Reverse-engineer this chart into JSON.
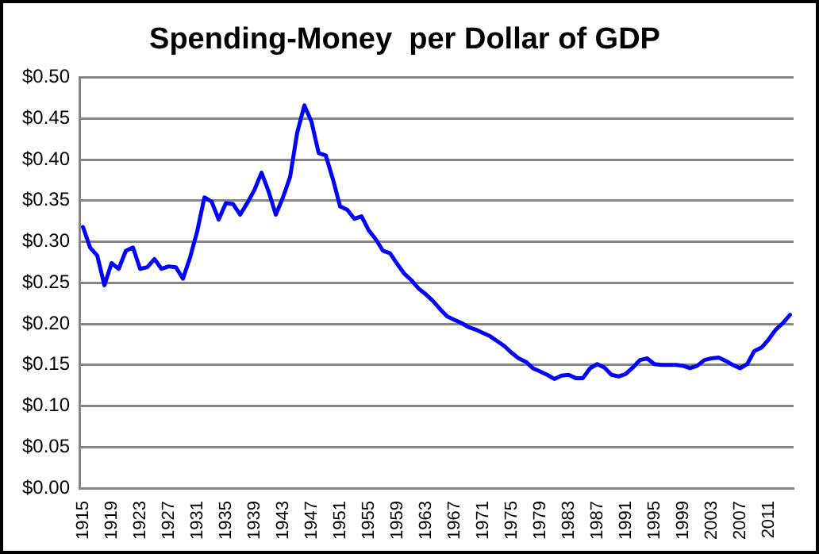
{
  "chart_data": {
    "type": "line",
    "title": "Spending-Money  per Dollar of GDP",
    "categories": [
      "1915",
      null,
      null,
      null,
      "1919",
      null,
      null,
      null,
      "1923",
      null,
      null,
      null,
      "1927",
      null,
      null,
      null,
      "1931",
      null,
      null,
      null,
      "1935",
      null,
      null,
      null,
      "1939",
      null,
      null,
      null,
      "1943",
      null,
      null,
      null,
      "1947",
      null,
      null,
      null,
      "1951",
      null,
      null,
      null,
      "1955",
      null,
      null,
      null,
      "1959",
      null,
      null,
      null,
      "1963",
      null,
      null,
      null,
      "1967",
      null,
      null,
      null,
      "1971",
      null,
      null,
      null,
      "1975",
      null,
      null,
      null,
      "1979",
      null,
      null,
      null,
      "1983",
      null,
      null,
      null,
      "1987",
      null,
      null,
      null,
      "1991",
      null,
      null,
      null,
      "1995",
      null,
      null,
      null,
      "1999",
      null,
      null,
      null,
      "2003",
      null,
      null,
      null,
      "2007",
      null,
      null,
      null,
      "2011",
      null,
      null,
      null
    ],
    "series": [
      {
        "color": "#0000ff",
        "values": [
          0.318,
          0.293,
          0.283,
          0.247,
          0.274,
          0.267,
          0.289,
          0.293,
          0.267,
          0.269,
          0.279,
          0.267,
          0.27,
          0.269,
          0.255,
          0.281,
          0.313,
          0.354,
          0.349,
          0.327,
          0.347,
          0.346,
          0.333,
          0.347,
          0.363,
          0.384,
          0.361,
          0.333,
          0.354,
          0.379,
          0.433,
          0.466,
          0.446,
          0.408,
          0.405,
          0.376,
          0.343,
          0.339,
          0.328,
          0.331,
          0.314,
          0.303,
          0.289,
          0.286,
          0.273,
          0.261,
          0.253,
          0.243,
          0.236,
          0.228,
          0.218,
          0.209,
          0.205,
          0.201,
          0.196,
          0.193,
          0.189,
          0.185,
          0.179,
          0.173,
          0.165,
          0.158,
          0.154,
          0.146,
          0.142,
          0.138,
          0.133,
          0.137,
          0.138,
          0.134,
          0.134,
          0.146,
          0.151,
          0.147,
          0.138,
          0.136,
          0.139,
          0.147,
          0.156,
          0.158,
          0.151,
          0.15,
          0.15,
          0.15,
          0.149,
          0.146,
          0.149,
          0.156,
          0.158,
          0.159,
          0.155,
          0.15,
          0.146,
          0.151,
          0.167,
          0.171,
          0.181,
          0.193,
          0.201,
          0.211
        ]
      }
    ],
    "ylim": [
      0,
      0.5
    ],
    "yticks": [
      {
        "value": 0,
        "label": "$0.00"
      },
      {
        "value": 0.05,
        "label": "$0.05"
      },
      {
        "value": 0.1,
        "label": "$0.10"
      },
      {
        "value": 0.15,
        "label": "$0.15"
      },
      {
        "value": 0.2,
        "label": "$0.20"
      },
      {
        "value": 0.25,
        "label": "$0.25"
      },
      {
        "value": 0.3,
        "label": "$0.30"
      },
      {
        "value": 0.35,
        "label": "$0.35"
      },
      {
        "value": 0.4,
        "label": "$0.40"
      },
      {
        "value": 0.45,
        "label": "$0.45"
      },
      {
        "value": 0.5,
        "label": "$0.50"
      }
    ],
    "grid": "y",
    "legend": false,
    "marker": "none",
    "line_style": "solid"
  }
}
